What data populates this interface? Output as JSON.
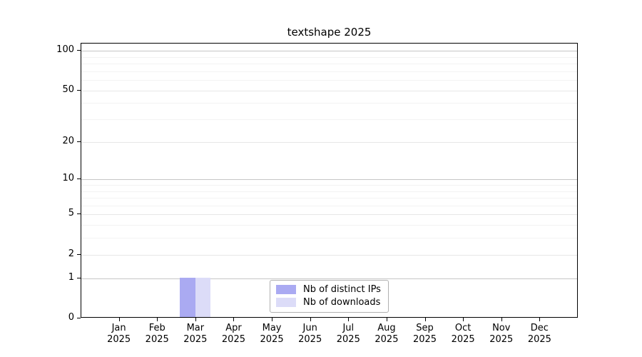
{
  "chart_data": {
    "type": "bar",
    "title": "textshape 2025",
    "categories": [
      "Jan",
      "Feb",
      "Mar",
      "Apr",
      "May",
      "Jun",
      "Jul",
      "Aug",
      "Sep",
      "Oct",
      "Nov",
      "Dec"
    ],
    "x_tick_year": "2025",
    "series": [
      {
        "name": "Nb of distinct IPs",
        "color": "#aaaaf2",
        "values": [
          0,
          0,
          1,
          0,
          0,
          0,
          0,
          0,
          0,
          0,
          0,
          0
        ]
      },
      {
        "name": "Nb of downloads",
        "color": "#dcdcf8",
        "values": [
          0,
          0,
          1,
          0,
          0,
          0,
          0,
          0,
          0,
          0,
          0,
          0
        ]
      }
    ],
    "yscale": "log1p",
    "ylim": [
      0,
      112
    ],
    "yticks": [
      0,
      1,
      2,
      5,
      10,
      20,
      50,
      100
    ],
    "y_decade_gridlines": [
      1,
      10,
      100
    ],
    "y_mid_gridlines": [
      2,
      5,
      20,
      50
    ],
    "y_minor_gridlines": [
      3,
      4,
      6,
      7,
      8,
      9,
      30,
      40,
      60,
      70,
      80,
      90
    ],
    "grid": "horizontal",
    "legend_position": "lower-center-inside",
    "xlabel": "",
    "ylabel": ""
  }
}
